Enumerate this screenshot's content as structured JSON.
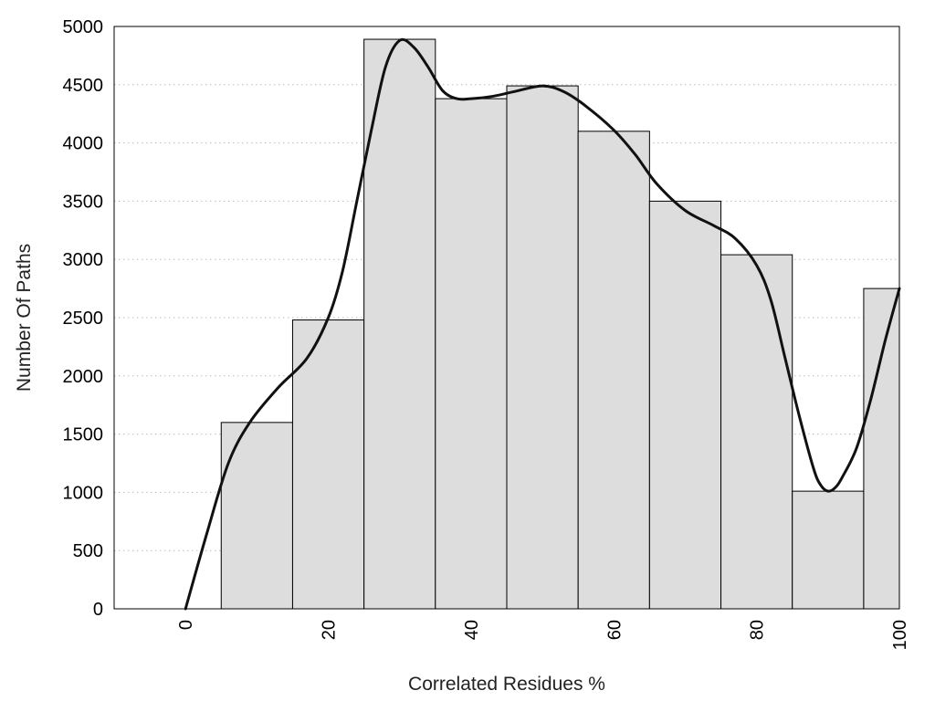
{
  "chart_data": {
    "type": "bar",
    "xlabel": "Correlated Residues %",
    "ylabel": "Number Of Paths",
    "bin_width": 10,
    "bins": [
      {
        "center": 0,
        "value": 0
      },
      {
        "center": 10,
        "value": 1600
      },
      {
        "center": 20,
        "value": 2480
      },
      {
        "center": 30,
        "value": 4890
      },
      {
        "center": 40,
        "value": 4380
      },
      {
        "center": 50,
        "value": 4490
      },
      {
        "center": 60,
        "value": 4100
      },
      {
        "center": 70,
        "value": 3500
      },
      {
        "center": 80,
        "value": 3040
      },
      {
        "center": 90,
        "value": 1010
      },
      {
        "center": 100,
        "value": 2750
      }
    ],
    "xlim": [
      -10,
      100
    ],
    "ylim": [
      0,
      5000
    ],
    "x_ticks": [
      0,
      20,
      40,
      60,
      80,
      100
    ],
    "x_tick_labels": [
      "0",
      "20",
      "40",
      "60",
      "80",
      "100"
    ],
    "y_ticks": [
      0,
      500,
      1000,
      1500,
      2000,
      2500,
      3000,
      3500,
      4000,
      4500,
      5000
    ],
    "y_tick_labels": [
      "0",
      "500",
      "1000",
      "1500",
      "2000",
      "2500",
      "3000",
      "3500",
      "4000",
      "4500",
      "5000"
    ],
    "curve": {
      "points": [
        [
          0,
          0
        ],
        [
          3,
          650
        ],
        [
          6,
          1250
        ],
        [
          9,
          1600
        ],
        [
          13,
          1900
        ],
        [
          17,
          2150
        ],
        [
          20,
          2500
        ],
        [
          22,
          2900
        ],
        [
          24,
          3500
        ],
        [
          26,
          4100
        ],
        [
          28,
          4650
        ],
        [
          30,
          4880
        ],
        [
          32,
          4820
        ],
        [
          34,
          4650
        ],
        [
          36,
          4450
        ],
        [
          38,
          4380
        ],
        [
          40,
          4380
        ],
        [
          43,
          4400
        ],
        [
          46,
          4440
        ],
        [
          50,
          4490
        ],
        [
          53,
          4440
        ],
        [
          56,
          4320
        ],
        [
          60,
          4110
        ],
        [
          63,
          3900
        ],
        [
          66,
          3650
        ],
        [
          70,
          3420
        ],
        [
          74,
          3290
        ],
        [
          77,
          3180
        ],
        [
          80,
          2950
        ],
        [
          82,
          2650
        ],
        [
          84,
          2150
        ],
        [
          86,
          1650
        ],
        [
          88,
          1200
        ],
        [
          89,
          1060
        ],
        [
          90,
          1010
        ],
        [
          91,
          1040
        ],
        [
          92,
          1130
        ],
        [
          94,
          1380
        ],
        [
          96,
          1800
        ],
        [
          98,
          2300
        ],
        [
          100,
          2750
        ]
      ]
    },
    "grid": {
      "y": true,
      "x": false
    },
    "colors": {
      "bar_fill": "#dddddd",
      "bar_edge": "#000000",
      "curve": "#111111",
      "grid": "#bdbdbd"
    }
  }
}
